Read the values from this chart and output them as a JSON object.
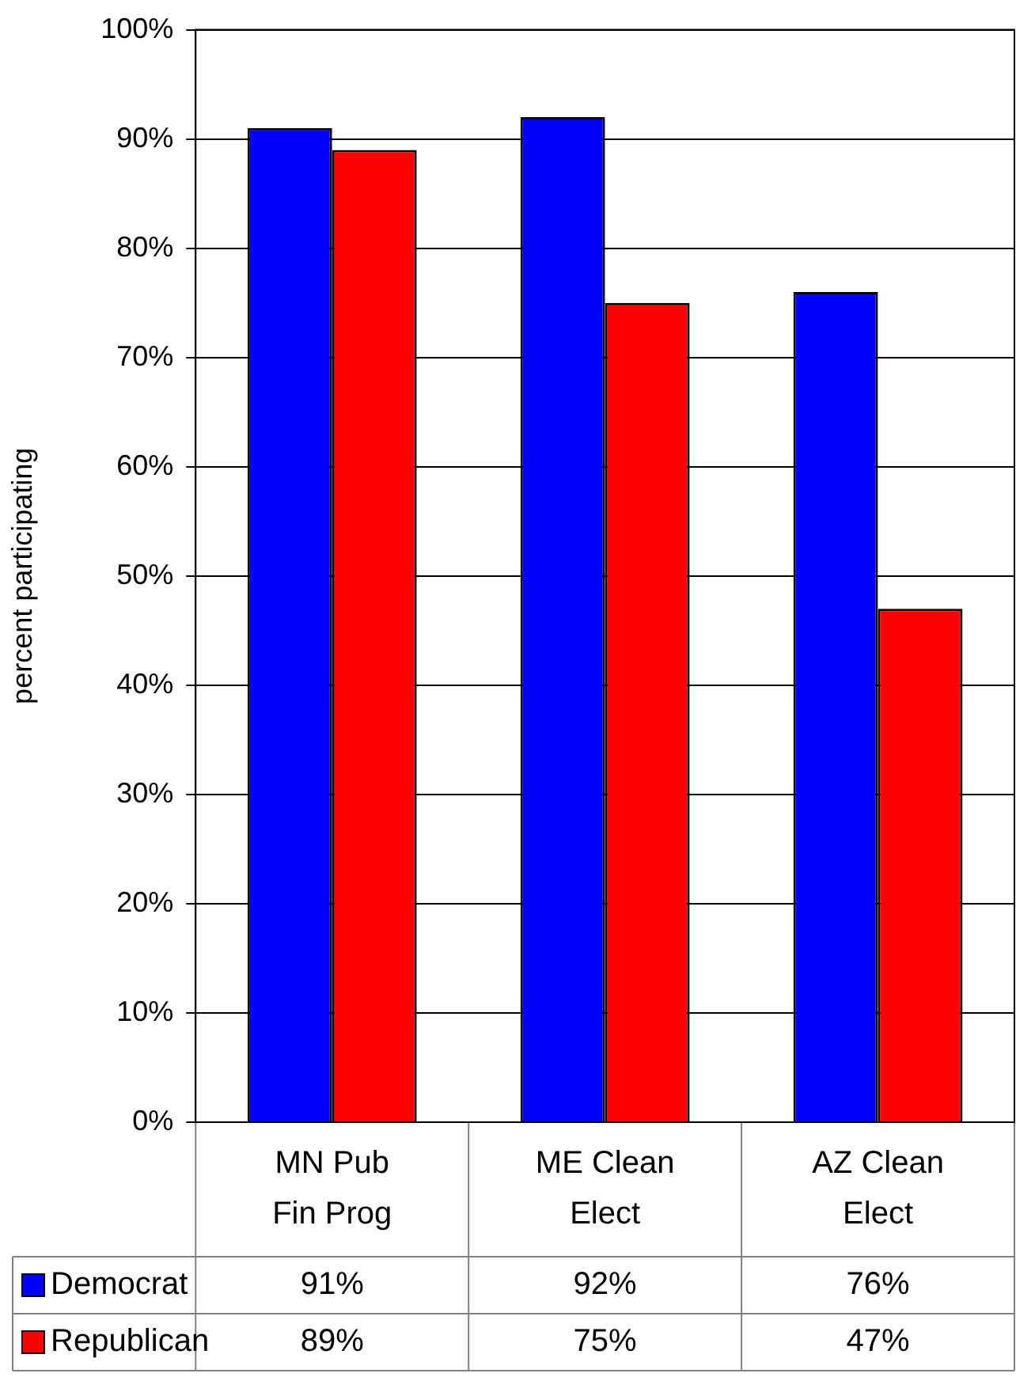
{
  "chart_data": {
    "type": "bar",
    "ylabel": "percent participating",
    "categories": [
      "MN Pub Fin Prog",
      "ME Clean Elect",
      "AZ Clean Elect"
    ],
    "series": [
      {
        "name": "Democrat",
        "color": "#0000ff",
        "values": [
          91,
          92,
          76
        ],
        "value_labels": [
          "91%",
          "92%",
          "76%"
        ]
      },
      {
        "name": "Republican",
        "color": "#ff0000",
        "values": [
          89,
          75,
          47
        ],
        "value_labels": [
          "89%",
          "75%",
          "47%"
        ]
      }
    ],
    "ylim": [
      0,
      100
    ],
    "yticks": [
      {
        "value": 0,
        "label": "0%"
      },
      {
        "value": 10,
        "label": "10%"
      },
      {
        "value": 20,
        "label": "20%"
      },
      {
        "value": 30,
        "label": "30%"
      },
      {
        "value": 40,
        "label": "40%"
      },
      {
        "value": 50,
        "label": "50%"
      },
      {
        "value": 60,
        "label": "60%"
      },
      {
        "value": 70,
        "label": "70%"
      },
      {
        "value": 80,
        "label": "80%"
      },
      {
        "value": 90,
        "label": "90%"
      },
      {
        "value": 100,
        "label": "100%"
      }
    ],
    "grid": "y",
    "legend": "bottom"
  }
}
